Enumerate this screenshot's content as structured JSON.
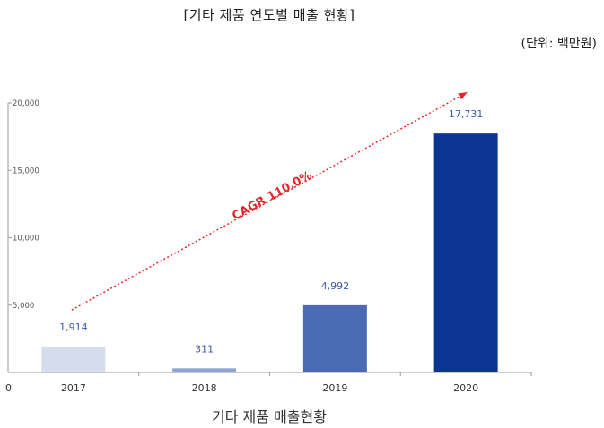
{
  "header": {
    "title": "[기타 제품 연도별 매출 현황]",
    "unit": "(단위: 백만원)"
  },
  "caption": "기타 제품 매출현황",
  "chart_data": {
    "type": "bar",
    "title": "[기타 제품 연도별 매출 현황]",
    "categories": [
      "2017",
      "2018",
      "2019",
      "2020"
    ],
    "values": [
      1914,
      311,
      4992,
      17731
    ],
    "value_labels": [
      "1,914",
      "311",
      "4,992",
      "17,731"
    ],
    "bar_colors": [
      "#d5dcee",
      "#8fa3d2",
      "#4a6ab4",
      "#0c3591"
    ],
    "ylim": [
      0,
      20000
    ],
    "yticks": [
      0,
      5000,
      10000,
      15000,
      20000
    ],
    "ytick_labels": [
      "0",
      "5,000",
      "10,000",
      "15,000",
      "20,000"
    ],
    "xlabel": "",
    "ylabel": "",
    "grid": false,
    "annotation": {
      "text": "CAGR 110.0%",
      "color": "#e8242b",
      "style": "dotted-arrow"
    }
  }
}
